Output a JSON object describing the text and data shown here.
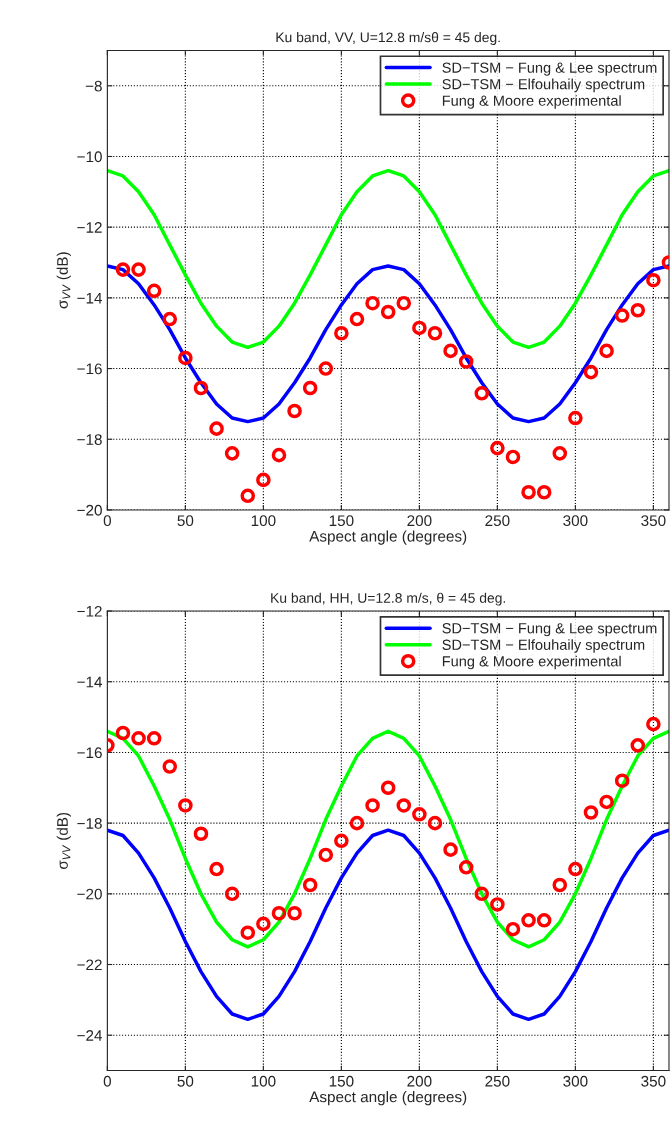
{
  "chart_data": [
    {
      "type": "line",
      "title": "Ku band, VV, U=12.8 m/sθ = 45 deg.",
      "xlabel": "Aspect angle (degrees)",
      "ylabel": "σ$_{VV}$ (dB)",
      "xlim": [
        0,
        360
      ],
      "xticks": [
        0,
        50,
        100,
        150,
        200,
        250,
        300,
        350
      ],
      "ylim": [
        -20,
        -7
      ],
      "yticks": [
        -20,
        -18,
        -16,
        -14,
        -12,
        -10,
        -8
      ],
      "grid": true,
      "legend": "top right",
      "series": [
        {
          "name": "SD−TSM − Fung & Lee spectrum",
          "color": "#0000ff",
          "x": [
            0,
            10,
            20,
            30,
            40,
            50,
            60,
            70,
            80,
            90,
            100,
            110,
            120,
            130,
            140,
            150,
            160,
            170,
            180,
            190,
            200,
            210,
            220,
            230,
            240,
            250,
            260,
            270,
            280,
            290,
            300,
            310,
            320,
            330,
            340,
            350,
            360
          ],
          "values": [
            -13.1,
            -13.2,
            -13.6,
            -14.2,
            -14.9,
            -15.7,
            -16.4,
            -17.0,
            -17.4,
            -17.5,
            -17.4,
            -17.0,
            -16.4,
            -15.7,
            -14.9,
            -14.2,
            -13.6,
            -13.2,
            -13.1,
            -13.2,
            -13.6,
            -14.2,
            -14.9,
            -15.7,
            -16.4,
            -17.0,
            -17.4,
            -17.5,
            -17.4,
            -17.0,
            -16.4,
            -15.7,
            -14.9,
            -14.2,
            -13.6,
            -13.2,
            -13.1
          ]
        },
        {
          "name": "SD−TSM − Elfouhaily spectrum",
          "color": "#00ff00",
          "x": [
            0,
            10,
            20,
            30,
            40,
            50,
            60,
            70,
            80,
            90,
            100,
            110,
            120,
            130,
            140,
            150,
            160,
            170,
            180,
            190,
            200,
            210,
            220,
            230,
            240,
            250,
            260,
            270,
            280,
            290,
            300,
            310,
            320,
            330,
            340,
            350,
            360
          ],
          "values": [
            -10.4,
            -10.55,
            -11.0,
            -11.65,
            -12.5,
            -13.35,
            -14.15,
            -14.8,
            -15.25,
            -15.4,
            -15.25,
            -14.8,
            -14.15,
            -13.35,
            -12.5,
            -11.65,
            -11.0,
            -10.55,
            -10.4,
            -10.55,
            -11.0,
            -11.65,
            -12.5,
            -13.35,
            -14.15,
            -14.8,
            -15.25,
            -15.4,
            -15.25,
            -14.8,
            -14.15,
            -13.35,
            -12.5,
            -11.65,
            -11.0,
            -10.55,
            -10.4
          ]
        },
        {
          "name": "Fung & Moore experimental",
          "type": "scatter",
          "marker": "circle",
          "color": "#ff0000",
          "x": [
            10,
            20,
            30,
            40,
            50,
            60,
            70,
            80,
            90,
            100,
            110,
            120,
            130,
            140,
            150,
            160,
            170,
            180,
            190,
            200,
            210,
            220,
            230,
            240,
            250,
            260,
            270,
            280,
            290,
            300,
            310,
            320,
            330,
            340,
            350,
            360
          ],
          "values": [
            -13.2,
            -13.2,
            -13.8,
            -14.6,
            -15.7,
            -16.55,
            -17.7,
            -18.4,
            -19.6,
            -19.15,
            -18.45,
            -17.2,
            -16.55,
            -16.0,
            -15.0,
            -14.6,
            -14.15,
            -14.4,
            -14.15,
            -14.85,
            -15.0,
            -15.5,
            -15.8,
            -16.7,
            -18.25,
            -18.5,
            -19.5,
            -19.5,
            -18.4,
            -17.4,
            -16.1,
            -15.5,
            -14.5,
            -14.35,
            -13.5,
            -13.0
          ]
        }
      ]
    },
    {
      "type": "line",
      "title": "Ku band, HH, U=12.8 m/s, θ = 45 deg.",
      "xlabel": "Aspect angle (degrees)",
      "ylabel": "σ$_{VV}$ (dB)",
      "xlim": [
        0,
        360
      ],
      "xticks": [
        0,
        50,
        100,
        150,
        200,
        250,
        300,
        350
      ],
      "ylim": [
        -25,
        -12
      ],
      "yticks": [
        -24,
        -22,
        -20,
        -18,
        -16,
        -14,
        -12
      ],
      "grid": true,
      "legend": "top right",
      "series": [
        {
          "name": "SD−TSM − Fung & Lee spectrum",
          "color": "#0000ff",
          "x": [
            0,
            10,
            20,
            30,
            40,
            50,
            60,
            70,
            80,
            90,
            100,
            110,
            120,
            130,
            140,
            150,
            160,
            170,
            180,
            190,
            200,
            210,
            220,
            230,
            240,
            250,
            260,
            270,
            280,
            290,
            300,
            310,
            320,
            330,
            340,
            350,
            360
          ],
          "values": [
            -18.2,
            -18.35,
            -18.85,
            -19.55,
            -20.4,
            -21.35,
            -22.2,
            -22.9,
            -23.4,
            -23.55,
            -23.4,
            -22.9,
            -22.2,
            -21.35,
            -20.4,
            -19.55,
            -18.85,
            -18.35,
            -18.2,
            -18.35,
            -18.85,
            -19.55,
            -20.4,
            -21.35,
            -22.2,
            -22.9,
            -23.4,
            -23.55,
            -23.4,
            -22.9,
            -22.2,
            -21.35,
            -20.4,
            -19.55,
            -18.85,
            -18.35,
            -18.2
          ]
        },
        {
          "name": "SD−TSM − Elfouhaily spectrum",
          "color": "#00ff00",
          "x": [
            0,
            10,
            20,
            30,
            40,
            50,
            60,
            70,
            80,
            90,
            100,
            110,
            120,
            130,
            140,
            150,
            160,
            170,
            180,
            190,
            200,
            210,
            220,
            230,
            240,
            250,
            260,
            270,
            280,
            290,
            300,
            310,
            320,
            330,
            340,
            350,
            360
          ],
          "values": [
            -15.4,
            -15.6,
            -16.1,
            -16.95,
            -17.9,
            -19.0,
            -20.0,
            -20.8,
            -21.3,
            -21.5,
            -21.3,
            -20.8,
            -20.0,
            -19.0,
            -17.9,
            -16.95,
            -16.1,
            -15.6,
            -15.4,
            -15.6,
            -16.1,
            -16.95,
            -17.9,
            -19.0,
            -20.0,
            -20.8,
            -21.3,
            -21.5,
            -21.3,
            -20.8,
            -20.0,
            -19.0,
            -17.9,
            -16.95,
            -16.1,
            -15.6,
            -15.4
          ]
        },
        {
          "name": "Fung & Moore experimental",
          "type": "scatter",
          "marker": "circle",
          "color": "#ff0000",
          "x": [
            0,
            10,
            20,
            30,
            40,
            50,
            60,
            70,
            80,
            90,
            100,
            110,
            120,
            130,
            140,
            150,
            160,
            170,
            180,
            190,
            200,
            210,
            220,
            230,
            240,
            250,
            260,
            270,
            280,
            290,
            300,
            310,
            320,
            330,
            340,
            350
          ],
          "values": [
            -15.8,
            -15.45,
            -15.6,
            -15.6,
            -16.4,
            -17.5,
            -18.3,
            -19.3,
            -20.0,
            -21.1,
            -20.85,
            -20.55,
            -20.55,
            -19.75,
            -18.9,
            -18.5,
            -18.0,
            -17.5,
            -17.0,
            -17.5,
            -17.75,
            -18.0,
            -18.75,
            -19.25,
            -20.0,
            -20.3,
            -21.0,
            -20.75,
            -20.75,
            -19.75,
            -19.3,
            -17.7,
            -17.4,
            -16.8,
            -15.8,
            -15.2
          ]
        }
      ]
    }
  ]
}
